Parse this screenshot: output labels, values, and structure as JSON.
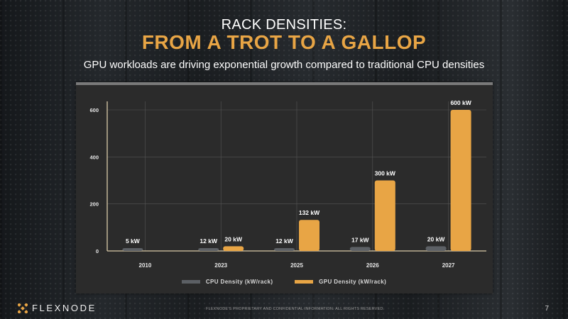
{
  "slide": {
    "title_line1": "RACK DENSITIES:",
    "title_line2": "FROM A TROT TO A GALLOP",
    "subtitle": "GPU workloads are driving exponential growth compared to traditional CPU densities"
  },
  "colors": {
    "cpu": "#5c6065",
    "gpu": "#e8a545",
    "accent": "#e8a545",
    "grid": "#555555",
    "axis": "#d9c9a8"
  },
  "chart_data": {
    "type": "bar",
    "title": "",
    "xlabel": "",
    "ylabel": "",
    "ylim": [
      0,
      600
    ],
    "yticks": [
      0,
      200,
      400,
      600
    ],
    "categories": [
      "2010",
      "2023",
      "2025",
      "2026",
      "2027"
    ],
    "series": [
      {
        "name": "CPU Density (kW/rack)",
        "values": [
          5,
          12,
          12,
          17,
          20
        ],
        "labels": [
          "5 kW",
          "12 kW",
          "12 kW",
          "17 kW",
          "20 kW"
        ]
      },
      {
        "name": "GPU Density (kW/rack)",
        "values": [
          null,
          20,
          132,
          300,
          600
        ],
        "labels": [
          "",
          "20 kW",
          "132 kW",
          "300 kW",
          "600 kW"
        ]
      }
    ],
    "grid": true,
    "legend_position": "bottom"
  },
  "footer": {
    "brand": "FLEXNODE",
    "legal": "FLEXNODE'S PROPRIETARY AND CONFIDENTIAL INFORMATION. ALL RIGHTS RESERVED.",
    "page_number": "7"
  }
}
